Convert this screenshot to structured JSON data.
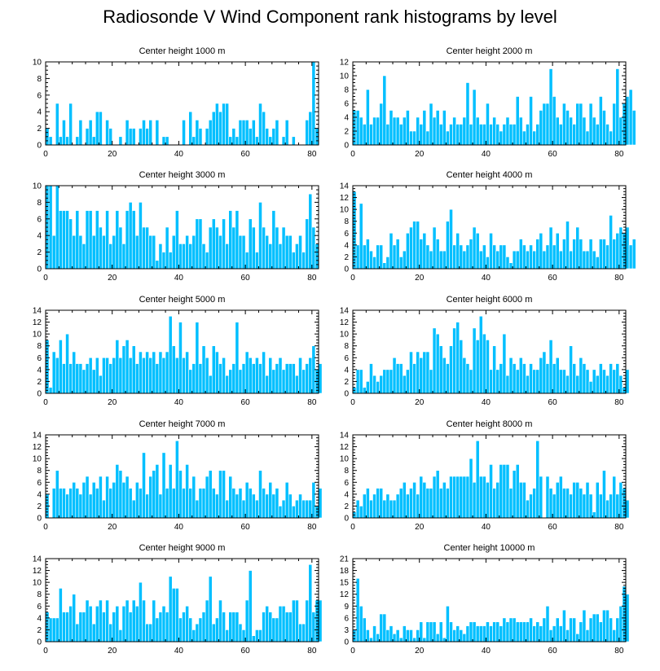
{
  "figure": {
    "title": "Radiosonde V Wind Component rank histograms by level"
  },
  "colors": {
    "bar": "#00bfff",
    "bar_edge": "#ffffff",
    "axis": "#000000"
  },
  "chart_data": [
    {
      "type": "bar",
      "title": "Center height 1000 m",
      "xlim": [
        0,
        82
      ],
      "ylim": [
        0,
        10
      ],
      "xticks": [
        0,
        20,
        40,
        60,
        80
      ],
      "yticks": [
        0,
        2,
        4,
        6,
        8,
        10
      ],
      "values": [
        2,
        1,
        0,
        5,
        1,
        3,
        1,
        5,
        0,
        1,
        3,
        0,
        2,
        3,
        1,
        4,
        4,
        0,
        3,
        2,
        0,
        0,
        1,
        0,
        3,
        2,
        2,
        0,
        2,
        3,
        2,
        3,
        0,
        3,
        0,
        1,
        1,
        0,
        0,
        0,
        0,
        3,
        0,
        4,
        1,
        3,
        2,
        0,
        2,
        3,
        4,
        5,
        4,
        5,
        5,
        1,
        2,
        1,
        3,
        3,
        3,
        2,
        3,
        1,
        5,
        4,
        2,
        1,
        2,
        3,
        0,
        1,
        3,
        0,
        1,
        0,
        0,
        0,
        3,
        4,
        10,
        2
      ]
    },
    {
      "type": "bar",
      "title": "Center height 2000 m",
      "xlim": [
        0,
        82
      ],
      "ylim": [
        0,
        12
      ],
      "xticks": [
        0,
        20,
        40,
        60,
        80
      ],
      "yticks": [
        0,
        2,
        4,
        6,
        8,
        10,
        12
      ],
      "values": [
        5,
        5,
        4,
        3,
        8,
        3,
        4,
        4,
        6,
        10,
        3,
        5,
        4,
        4,
        3,
        4,
        5,
        2,
        2,
        4,
        3,
        5,
        2,
        6,
        4,
        5,
        3,
        5,
        2,
        3,
        4,
        3,
        3,
        4,
        9,
        3,
        8,
        4,
        3,
        3,
        6,
        3,
        4,
        3,
        2,
        3,
        4,
        3,
        3,
        7,
        4,
        2,
        3,
        7,
        2,
        3,
        5,
        6,
        6,
        11,
        7,
        4,
        3,
        6,
        5,
        4,
        3,
        6,
        6,
        4,
        2,
        6,
        4,
        3,
        7,
        5,
        3,
        2,
        6,
        11,
        4,
        6,
        7,
        8,
        5
      ]
    },
    {
      "type": "bar",
      "title": "Center height 3000 m",
      "xlim": [
        0,
        82
      ],
      "ylim": [
        0,
        10
      ],
      "xticks": [
        0,
        20,
        40,
        60,
        80
      ],
      "yticks": [
        0,
        2,
        4,
        6,
        8,
        10
      ],
      "values": [
        10,
        10,
        4,
        10,
        7,
        7,
        7,
        6,
        4,
        7,
        4,
        3,
        7,
        7,
        4,
        7,
        5,
        4,
        7,
        3,
        4,
        7,
        5,
        3,
        7,
        8,
        7,
        4,
        8,
        5,
        5,
        4,
        4,
        1,
        3,
        2,
        5,
        2,
        4,
        7,
        3,
        3,
        4,
        3,
        4,
        6,
        6,
        3,
        2,
        5,
        6,
        5,
        4,
        6,
        3,
        7,
        5,
        7,
        4,
        4,
        2,
        6,
        5,
        2,
        8,
        5,
        4,
        3,
        7,
        5,
        3,
        5,
        4,
        4,
        2,
        3,
        4,
        2,
        6,
        9,
        5,
        3
      ]
    },
    {
      "type": "bar",
      "title": "Center height 4000 m",
      "xlim": [
        0,
        82
      ],
      "ylim": [
        0,
        14
      ],
      "xticks": [
        0,
        20,
        40,
        60,
        80
      ],
      "yticks": [
        0,
        2,
        4,
        6,
        8,
        10,
        12,
        14
      ],
      "values": [
        13,
        4,
        11,
        4,
        5,
        3,
        2,
        4,
        4,
        1,
        2,
        6,
        4,
        5,
        2,
        3,
        6,
        7,
        8,
        8,
        5,
        6,
        4,
        3,
        7,
        5,
        3,
        3,
        8,
        10,
        4,
        6,
        4,
        3,
        4,
        5,
        7,
        6,
        3,
        4,
        2,
        6,
        4,
        3,
        4,
        4,
        2,
        1,
        3,
        3,
        5,
        4,
        3,
        4,
        3,
        5,
        6,
        3,
        4,
        7,
        4,
        6,
        3,
        5,
        8,
        3,
        5,
        7,
        5,
        3,
        3,
        5,
        3,
        2,
        5,
        5,
        4,
        9,
        5,
        6,
        7,
        6,
        7,
        4,
        5
      ]
    },
    {
      "type": "bar",
      "title": "Center height 5000 m",
      "xlim": [
        0,
        82
      ],
      "ylim": [
        0,
        14
      ],
      "xticks": [
        0,
        20,
        40,
        60,
        80
      ],
      "yticks": [
        0,
        2,
        4,
        6,
        8,
        10,
        12,
        14
      ],
      "values": [
        9,
        1,
        7,
        6,
        9,
        5,
        10,
        5,
        7,
        5,
        5,
        4,
        5,
        6,
        4,
        6,
        3,
        6,
        6,
        5,
        6,
        9,
        6,
        8,
        9,
        6,
        8,
        5,
        7,
        6,
        7,
        6,
        7,
        5,
        7,
        6,
        7,
        13,
        8,
        6,
        12,
        6,
        7,
        4,
        5,
        12,
        5,
        8,
        6,
        3,
        8,
        7,
        5,
        6,
        3,
        4,
        5,
        12,
        4,
        5,
        7,
        6,
        5,
        6,
        5,
        7,
        3,
        6,
        4,
        5,
        6,
        4,
        5,
        5,
        5,
        3,
        6,
        4,
        5,
        6,
        8,
        4,
        5
      ]
    },
    {
      "type": "bar",
      "title": "Center height 6000 m",
      "xlim": [
        0,
        82
      ],
      "ylim": [
        0,
        14
      ],
      "xticks": [
        0,
        20,
        40,
        60,
        80
      ],
      "yticks": [
        0,
        2,
        4,
        6,
        8,
        10,
        12,
        14
      ],
      "values": [
        1,
        4,
        4,
        1,
        2,
        5,
        3,
        2,
        3,
        4,
        4,
        4,
        6,
        5,
        5,
        3,
        4,
        7,
        5,
        7,
        6,
        7,
        7,
        4,
        11,
        10,
        8,
        6,
        5,
        8,
        11,
        12,
        9,
        6,
        5,
        4,
        11,
        9,
        13,
        10,
        9,
        4,
        8,
        4,
        5,
        10,
        3,
        6,
        5,
        4,
        6,
        5,
        3,
        5,
        4,
        4,
        6,
        7,
        5,
        9,
        5,
        6,
        4,
        4,
        3,
        8,
        5,
        3,
        6,
        5,
        4,
        2,
        4,
        3,
        5,
        4,
        3,
        5,
        4,
        5,
        3,
        1,
        4
      ]
    },
    {
      "type": "bar",
      "title": "Center height 7000 m",
      "xlim": [
        0,
        82
      ],
      "ylim": [
        0,
        14
      ],
      "xticks": [
        0,
        20,
        40,
        60,
        80
      ],
      "yticks": [
        0,
        2,
        4,
        6,
        8,
        10,
        12,
        14
      ],
      "values": [
        4,
        0,
        5,
        8,
        5,
        5,
        4,
        5,
        6,
        5,
        4,
        6,
        7,
        4,
        6,
        5,
        7,
        3,
        7,
        5,
        6,
        9,
        8,
        6,
        7,
        5,
        3,
        6,
        5,
        11,
        4,
        7,
        8,
        9,
        4,
        11,
        5,
        9,
        5,
        13,
        8,
        5,
        9,
        5,
        7,
        3,
        5,
        5,
        7,
        8,
        5,
        4,
        8,
        8,
        3,
        7,
        5,
        4,
        5,
        3,
        6,
        5,
        4,
        3,
        8,
        5,
        4,
        6,
        4,
        5,
        2,
        3,
        6,
        4,
        2,
        3,
        4,
        3,
        3,
        3,
        6,
        2,
        5
      ]
    },
    {
      "type": "bar",
      "title": "Center height 8000 m",
      "xlim": [
        0,
        82
      ],
      "ylim": [
        0,
        14
      ],
      "xticks": [
        0,
        20,
        40,
        60,
        80
      ],
      "yticks": [
        0,
        2,
        4,
        6,
        8,
        10,
        12,
        14
      ],
      "values": [
        1,
        3,
        2,
        4,
        5,
        3,
        4,
        5,
        5,
        3,
        4,
        3,
        3,
        4,
        5,
        6,
        4,
        5,
        6,
        4,
        7,
        6,
        5,
        5,
        7,
        8,
        5,
        6,
        5,
        7,
        7,
        7,
        7,
        7,
        7,
        10,
        6,
        13,
        7,
        7,
        6,
        9,
        5,
        6,
        9,
        9,
        9,
        5,
        8,
        9,
        6,
        6,
        3,
        4,
        5,
        13,
        7,
        0,
        7,
        5,
        4,
        6,
        7,
        5,
        5,
        4,
        6,
        6,
        5,
        4,
        6,
        4,
        1,
        6,
        4,
        8,
        3,
        4,
        7,
        4,
        6,
        5,
        3
      ]
    },
    {
      "type": "bar",
      "title": "Center height 9000 m",
      "xlim": [
        0,
        82
      ],
      "ylim": [
        0,
        14
      ],
      "xticks": [
        0,
        20,
        40,
        60,
        80
      ],
      "yticks": [
        0,
        2,
        4,
        6,
        8,
        10,
        12,
        14
      ],
      "values": [
        5,
        4,
        4,
        4,
        9,
        5,
        5,
        6,
        8,
        3,
        5,
        5,
        7,
        6,
        3,
        6,
        7,
        5,
        7,
        3,
        5,
        6,
        2,
        6,
        7,
        5,
        7,
        6,
        10,
        7,
        3,
        3,
        7,
        4,
        5,
        6,
        5,
        11,
        9,
        9,
        4,
        5,
        6,
        4,
        2,
        3,
        4,
        5,
        7,
        11,
        3,
        4,
        7,
        5,
        2,
        5,
        5,
        5,
        3,
        2,
        7,
        12,
        1,
        2,
        2,
        5,
        6,
        5,
        4,
        4,
        6,
        6,
        5,
        5,
        7,
        7,
        3,
        3,
        7,
        13,
        5,
        7,
        7
      ]
    },
    {
      "type": "bar",
      "title": "Center height 10000 m",
      "xlim": [
        0,
        82
      ],
      "ylim": [
        0,
        21
      ],
      "xticks": [
        0,
        20,
        40,
        60,
        80
      ],
      "yticks": [
        0,
        3,
        6,
        9,
        12,
        15,
        18,
        21
      ],
      "values": [
        3,
        16,
        9,
        6,
        3,
        1,
        4,
        2,
        7,
        7,
        3,
        4,
        2,
        3,
        1,
        4,
        3,
        3,
        1,
        3,
        5,
        1,
        5,
        5,
        5,
        2,
        5,
        1,
        9,
        5,
        3,
        4,
        3,
        2,
        4,
        5,
        5,
        4,
        4,
        4,
        5,
        4,
        5,
        5,
        4,
        6,
        5,
        6,
        6,
        5,
        5,
        5,
        5,
        6,
        4,
        5,
        4,
        6,
        9,
        3,
        4,
        6,
        4,
        8,
        3,
        6,
        6,
        2,
        5,
        8,
        3,
        6,
        7,
        7,
        5,
        8,
        8,
        6,
        3,
        6,
        9,
        14,
        12
      ]
    }
  ]
}
